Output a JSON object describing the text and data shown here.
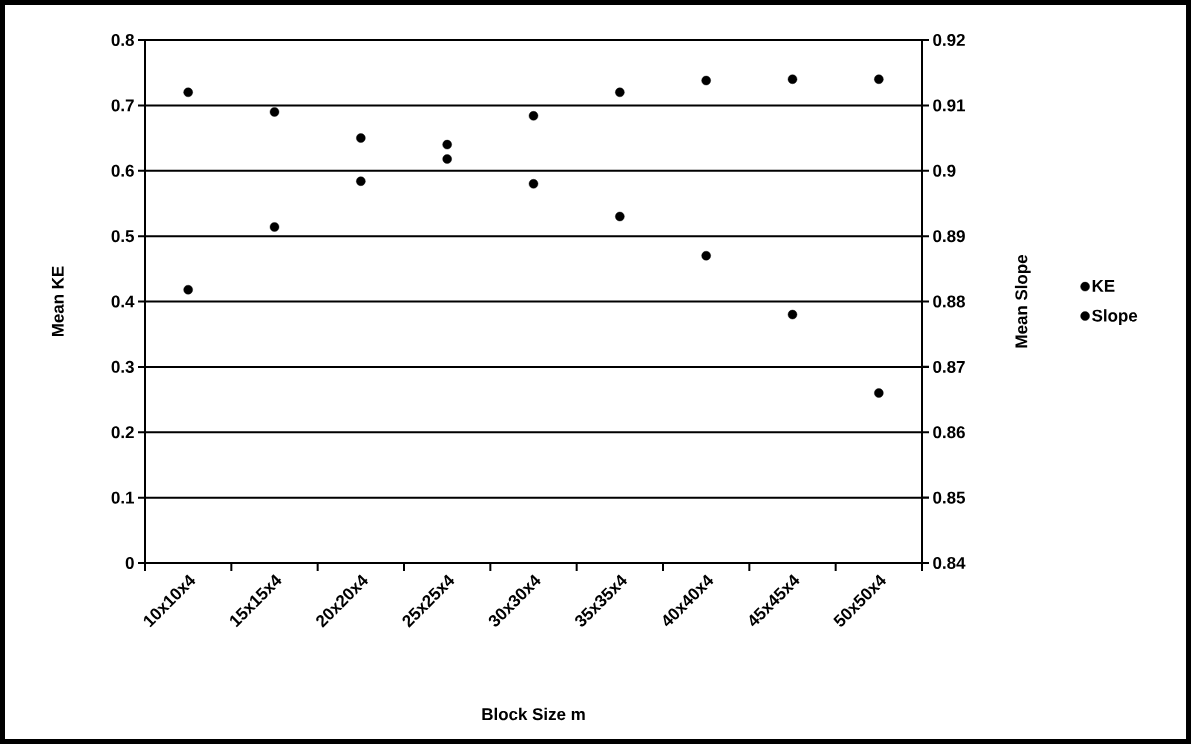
{
  "chart_data": {
    "type": "scatter",
    "xlabel": "Block Size m",
    "ylabel": "Mean KE",
    "y2label": "Mean Slope",
    "categories": [
      "10x10x4",
      "15x15x4",
      "20x20x4",
      "25x25x4",
      "30x30x4",
      "35x35x4",
      "40x40x4",
      "45x45x4",
      "50x50x4"
    ],
    "series": [
      {
        "name": "KE",
        "color": "#000000",
        "values": [
          0.418,
          0.514,
          0.584,
          0.618,
          0.684,
          0.72,
          0.738,
          0.74,
          0.74
        ]
      },
      {
        "name": "Slope",
        "color": "#000000",
        "axis": "y2",
        "values": [
          0.912,
          0.909,
          0.905,
          0.904,
          0.898,
          0.893,
          0.887,
          0.878,
          0.866
        ]
      }
    ],
    "ylim": [
      0,
      0.8
    ],
    "yticks": [
      0,
      0.1,
      0.2,
      0.3,
      0.4,
      0.5,
      0.6,
      0.7,
      0.8
    ],
    "y2lim": [
      0.84,
      0.92
    ],
    "y2ticks": [
      0.84,
      0.85,
      0.86,
      0.87,
      0.88,
      0.89,
      0.9,
      0.91,
      0.92
    ],
    "grid": "y",
    "legend": "right"
  }
}
